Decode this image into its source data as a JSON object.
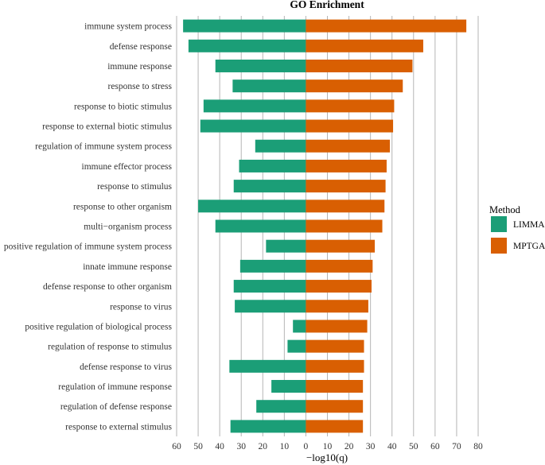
{
  "chart_data": {
    "type": "bar",
    "orientation": "horizontal",
    "title": "GO Enrichment",
    "xlabel": "−log10(q)",
    "ylabel": "",
    "xlim": [
      -60,
      80
    ],
    "xticks": [
      -60,
      -50,
      -40,
      -30,
      -20,
      -10,
      0,
      10,
      20,
      30,
      40,
      50,
      60,
      70,
      80
    ],
    "xtick_labels": [
      "60",
      "50",
      "40",
      "30",
      "20",
      "10",
      "0",
      "10",
      "20",
      "30",
      "40",
      "50",
      "60",
      "70",
      "80"
    ],
    "grid": true,
    "legend": {
      "title": "Method",
      "position": "right"
    },
    "categories": [
      "immune system process",
      "defense response",
      "immune response",
      "response to stress",
      "response to biotic stimulus",
      "response to external biotic stimulus",
      "regulation of immune system process",
      "immune effector process",
      "response to stimulus",
      "response to other organism",
      "multi−organism process",
      "positive regulation of immune system process",
      "innate immune response",
      "defense response to other organism",
      "response to virus",
      "positive regulation of biological process",
      "regulation of response to stimulus",
      "defense response to virus",
      "regulation of immune response",
      "regulation of defense response",
      "response to external stimulus"
    ],
    "series": [
      {
        "name": "LIMMA",
        "color": "#1b9e77",
        "values": [
          -57,
          -54.5,
          -42,
          -34,
          -47.5,
          -49,
          -23.5,
          -31,
          -33.5,
          -50,
          -42,
          -18.5,
          -30.5,
          -33.5,
          -33,
          -6,
          -8.5,
          -35.5,
          -16,
          -23,
          -35
        ]
      },
      {
        "name": "MPTGA",
        "color": "#d95f02",
        "values": [
          74.5,
          54.5,
          49.5,
          45,
          41,
          40.5,
          39,
          37.5,
          37,
          36.5,
          35.5,
          32,
          31,
          30.5,
          29,
          28.5,
          27,
          27,
          26.5,
          26.5,
          26.5
        ]
      }
    ]
  }
}
